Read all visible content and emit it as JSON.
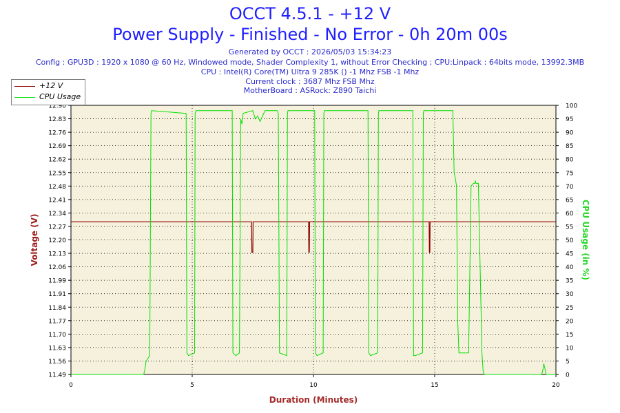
{
  "header": {
    "title": "OCCT 4.5.1 - +12 V",
    "subtitle": "Power Supply - Finished - No Error - 0h 20m 00s",
    "info_lines": [
      "Generated by OCCT : 2026/05/03 15:34:23",
      "Config : GPU3D : 1920 x 1080 @ 60 Hz, Windowed mode, Shader Complexity 1, without Error Checking ; CPU:Linpack : 64bits mode, 13992.3MB",
      "CPU : Intel(R) Core(TM) Ultra 9 285K () -1 Mhz FSB -1 Mhz",
      "Current clock : 3687 Mhz FSB  Mhz",
      "MotherBoard : ASRock: Z890 Taichi"
    ]
  },
  "colors": {
    "plot_bg": "#f6f1dc",
    "voltage": "#8b0000",
    "cpu": "#00e000",
    "left_axis_label": "#9b1c1c",
    "right_axis_label": "#27d827",
    "x_axis_label": "#a52a2a"
  },
  "chart_data": {
    "type": "line",
    "xlabel": "Duration (Minutes)",
    "ylabel_left": "Voltage (V)",
    "ylabel_right": "CPU Usage (in %)",
    "xlim": [
      0,
      20
    ],
    "x_ticks": [
      "0",
      "5",
      "10",
      "15",
      "20"
    ],
    "ylim_left": [
      11.49,
      12.9
    ],
    "y_ticks_left": [
      "11.49",
      "11.56",
      "11.63",
      "11.70",
      "11.77",
      "11.84",
      "11.91",
      "11.99",
      "12.06",
      "12.13",
      "12.20",
      "12.27",
      "12.34",
      "12.41",
      "12.48",
      "12.55",
      "12.62",
      "12.69",
      "12.76",
      "12.83",
      "12.90"
    ],
    "ylim_right": [
      0,
      100
    ],
    "y_ticks_right": [
      "0",
      "5",
      "10",
      "15",
      "20",
      "25",
      "30",
      "35",
      "40",
      "45",
      "50",
      "55",
      "60",
      "65",
      "70",
      "75",
      "80",
      "85",
      "90",
      "95",
      "100"
    ],
    "grid": true,
    "legend_position": "top-left",
    "series": [
      {
        "name": "+12 V",
        "axis": "left",
        "x": [
          0,
          7.45,
          7.46,
          7.5,
          7.51,
          7.53,
          7.54,
          9.8,
          9.81,
          9.83,
          9.84,
          14.77,
          14.78,
          14.8,
          14.81,
          20
        ],
        "y": [
          12.29,
          12.29,
          12.13,
          12.13,
          12.29,
          12.29,
          12.29,
          12.29,
          12.13,
          12.13,
          12.29,
          12.29,
          12.13,
          12.13,
          12.29,
          12.29
        ]
      },
      {
        "name": "CPU Usage",
        "axis": "right",
        "x": [
          0,
          3.0,
          3.05,
          3.1,
          3.25,
          3.3,
          3.32,
          4.75,
          4.78,
          4.85,
          5.1,
          5.12,
          5.15,
          6.65,
          6.68,
          6.8,
          6.95,
          7.0,
          7.05,
          7.1,
          7.5,
          7.6,
          7.7,
          7.8,
          8.0,
          8.5,
          8.55,
          8.6,
          8.9,
          8.93,
          8.95,
          10.05,
          10.08,
          10.15,
          10.4,
          10.43,
          10.45,
          12.25,
          12.28,
          12.35,
          12.65,
          12.68,
          12.7,
          14.1,
          14.13,
          14.2,
          14.5,
          14.53,
          14.55,
          15.75,
          15.8,
          15.85,
          15.9,
          15.95,
          16.0,
          16.3,
          16.35,
          16.4,
          16.5,
          16.6,
          16.65,
          16.68,
          16.7,
          16.8,
          16.95,
          17.0,
          17.05,
          17.2,
          19.4,
          19.45,
          19.5,
          19.6,
          20.0
        ],
        "y": [
          0,
          0,
          2,
          5,
          7,
          97,
          98,
          97,
          8,
          7,
          8,
          97,
          98,
          98,
          8,
          7,
          8,
          95,
          93,
          97,
          98,
          95,
          96,
          94,
          98,
          98,
          97,
          8,
          7,
          97,
          98,
          98,
          8,
          7,
          8,
          97,
          98,
          98,
          8,
          7,
          8,
          97,
          98,
          98,
          7,
          7,
          8,
          97,
          98,
          98,
          75,
          73,
          70,
          20,
          8,
          8,
          8,
          8,
          70,
          71,
          71,
          72,
          71,
          71,
          8,
          1,
          0,
          0,
          0,
          1,
          4,
          0,
          0
        ]
      }
    ]
  }
}
